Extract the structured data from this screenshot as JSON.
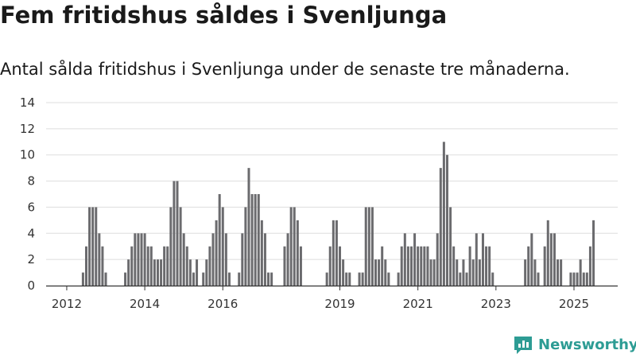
{
  "title": "Fem fritidshus såldes i Svenljunga",
  "subtitle": "Antal sålda fritidshus i Svenljunga under de senaste tre månaderna.",
  "brand": "Newsworthy",
  "colors": {
    "bar": "#6b6b6e",
    "highlight": "#2a9d8f",
    "grid": "#dddddd",
    "brand": "#2d9c94"
  },
  "chart_data": {
    "type": "bar",
    "ylim": [
      0,
      14
    ],
    "yticks": [
      0,
      2,
      4,
      6,
      8,
      10,
      12,
      14
    ],
    "xticks": [
      {
        "label": "2012",
        "index": 5
      },
      {
        "label": "2014",
        "index": 29
      },
      {
        "label": "2016",
        "index": 53
      },
      {
        "label": "2019",
        "index": 89
      },
      {
        "label": "2021",
        "index": 113
      },
      {
        "label": "2023",
        "index": 137
      },
      {
        "label": "2025",
        "index": 161
      }
    ],
    "values": [
      0,
      0,
      0,
      0,
      0,
      0,
      0,
      0,
      0,
      0,
      1,
      3,
      6,
      6,
      6,
      4,
      3,
      1,
      0,
      0,
      0,
      0,
      0,
      1,
      2,
      3,
      4,
      4,
      4,
      4,
      3,
      3,
      2,
      2,
      2,
      3,
      3,
      6,
      8,
      8,
      6,
      4,
      3,
      2,
      1,
      2,
      0,
      1,
      2,
      3,
      4,
      5,
      7,
      6,
      4,
      1,
      0,
      0,
      1,
      4,
      6,
      9,
      7,
      7,
      7,
      5,
      4,
      1,
      1,
      0,
      0,
      0,
      3,
      4,
      6,
      6,
      5,
      3,
      0,
      0,
      0,
      0,
      0,
      0,
      0,
      1,
      3,
      5,
      5,
      3,
      2,
      1,
      1,
      0,
      0,
      1,
      1,
      6,
      6,
      6,
      2,
      2,
      3,
      2,
      1,
      0,
      0,
      1,
      3,
      4,
      3,
      3,
      4,
      3,
      3,
      3,
      3,
      2,
      2,
      4,
      9,
      11,
      10,
      6,
      3,
      2,
      1,
      2,
      1,
      3,
      2,
      4,
      2,
      4,
      3,
      3,
      1,
      0,
      0,
      0,
      0,
      0,
      0,
      0,
      0,
      0,
      2,
      3,
      4,
      2,
      1,
      0,
      3,
      5,
      4,
      4,
      2,
      2,
      0,
      0,
      1,
      1,
      1,
      2,
      1,
      1,
      3,
      5
    ],
    "highlight_index": 168,
    "annotation": {
      "index": 168,
      "label": "5"
    }
  }
}
